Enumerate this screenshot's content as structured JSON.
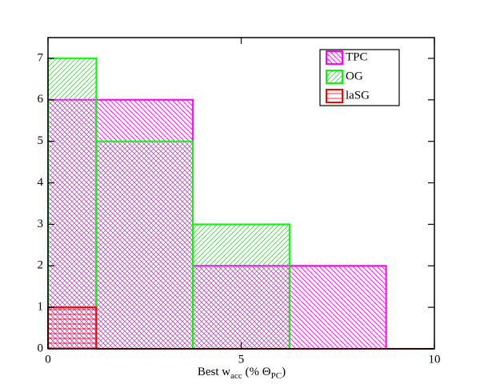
{
  "chart_data": {
    "type": "histogram",
    "xlabel": {
      "main": "Best w",
      "sub1": "acc",
      "mid": " (% Θ",
      "sub2": "PC",
      "end": ")"
    },
    "bins": [
      0,
      1.25,
      3.75,
      6.25,
      8.75,
      10
    ],
    "series": [
      {
        "name": "TPC",
        "color": "#ff00ff",
        "hatch": "backslash",
        "values": [
          6,
          6,
          2,
          2,
          0
        ]
      },
      {
        "name": "OG",
        "color": "#00ff00",
        "hatch": "slash",
        "values": [
          7,
          5,
          3,
          0,
          0
        ]
      },
      {
        "name": "laSG",
        "color": "#ff0000",
        "hatch": "horizontal",
        "values": [
          1,
          0,
          0,
          0,
          0
        ]
      }
    ],
    "xlim": [
      0,
      10
    ],
    "ylim": [
      0,
      7.5
    ],
    "xticks": [
      0,
      5,
      10
    ],
    "yticks": [
      0,
      1,
      2,
      3,
      4,
      5,
      6,
      7
    ],
    "legend": "upper right"
  }
}
